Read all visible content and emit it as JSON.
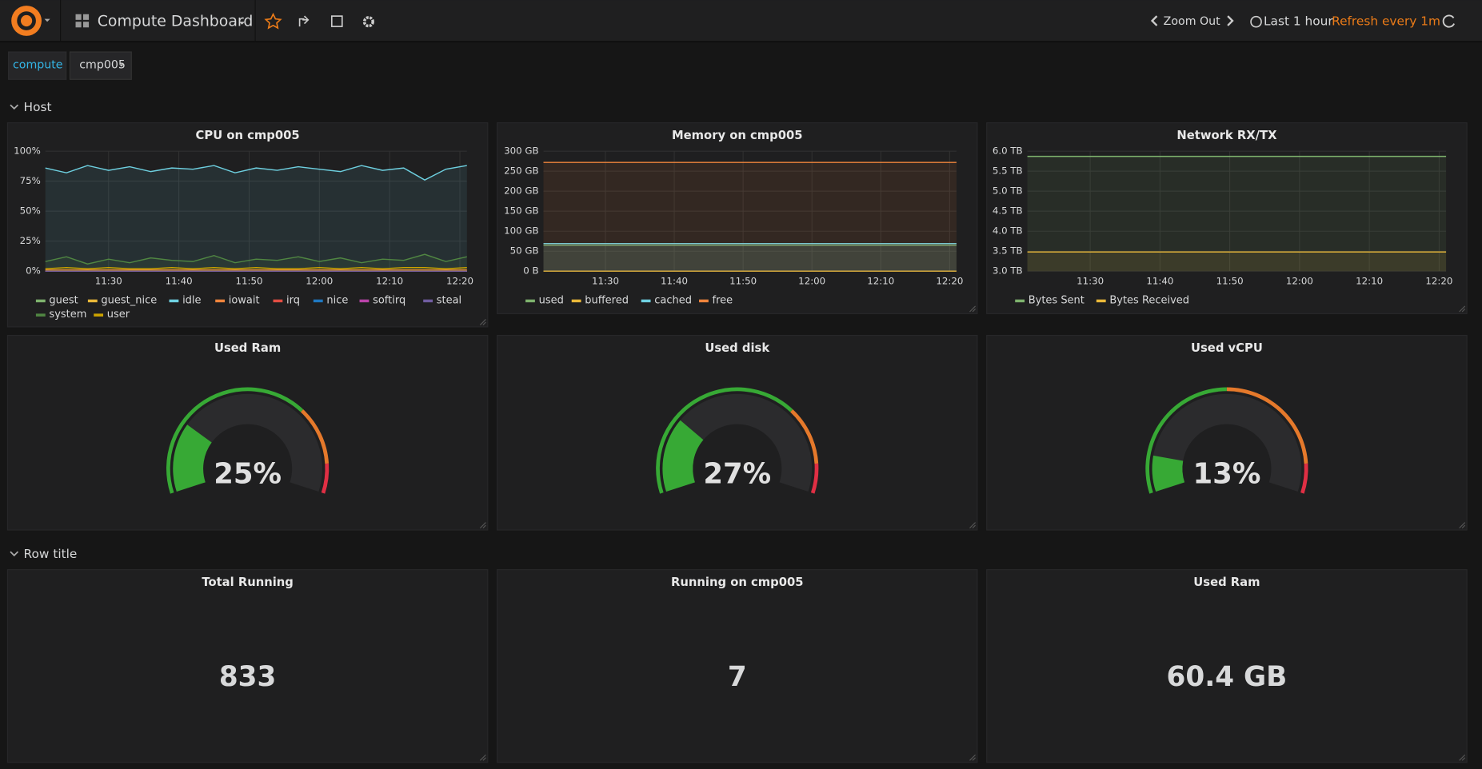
{
  "topbar": {
    "title": "Compute Dashboard",
    "zoom": "Zoom Out",
    "time_range": "Last 1 hour",
    "refresh": "Refresh every 1m"
  },
  "variables": [
    "compute",
    "cmp005"
  ],
  "rows": [
    "Host",
    "Row title"
  ],
  "cpu": {
    "type": "line",
    "title": "CPU on cmp005",
    "xlim": [
      "11:21",
      "12:21"
    ],
    "x": [
      "11:21",
      "11:24",
      "11:27",
      "11:30",
      "11:33",
      "11:36",
      "11:39",
      "11:42",
      "11:45",
      "11:48",
      "11:51",
      "11:54",
      "11:57",
      "12:00",
      "12:03",
      "12:06",
      "12:09",
      "12:12",
      "12:15",
      "12:18",
      "12:21"
    ],
    "xticks": [
      "11:30",
      "11:40",
      "11:50",
      "12:00",
      "12:10",
      "12:20"
    ],
    "ylim": [
      0,
      100
    ],
    "yticks": [
      {
        "value": 0,
        "label": "0%"
      },
      {
        "value": 25,
        "label": "25%"
      },
      {
        "value": 50,
        "label": "50%"
      },
      {
        "value": 75,
        "label": "75%"
      },
      {
        "value": 100,
        "label": "100%"
      }
    ],
    "series": [
      {
        "name": "guest",
        "color": "#7eb26d",
        "values": [
          0,
          0,
          0,
          0,
          0,
          0,
          0,
          0,
          0,
          0,
          0,
          0,
          0,
          0,
          0,
          0,
          0,
          0,
          0,
          0,
          0
        ]
      },
      {
        "name": "guest_nice",
        "color": "#eab839",
        "values": [
          0,
          0,
          0,
          0,
          0,
          0,
          0,
          0,
          0,
          0,
          0,
          0,
          0,
          0,
          0,
          0,
          0,
          0,
          0,
          0,
          0
        ]
      },
      {
        "name": "idle",
        "color": "#6ed0e0",
        "values": [
          86,
          82,
          88,
          84,
          87,
          83,
          86,
          85,
          88,
          82,
          86,
          84,
          87,
          85,
          83,
          88,
          84,
          86,
          76,
          85,
          88
        ]
      },
      {
        "name": "iowait",
        "color": "#ef843c",
        "values": [
          1,
          1,
          1,
          1,
          1,
          1,
          1,
          1,
          1,
          1,
          1,
          1,
          1,
          1,
          1,
          1,
          1,
          1,
          1,
          1,
          1
        ]
      },
      {
        "name": "irq",
        "color": "#e24d42",
        "values": [
          0,
          0,
          0,
          0,
          0,
          0,
          0,
          0,
          0,
          0,
          0,
          0,
          0,
          0,
          0,
          0,
          0,
          0,
          0,
          0,
          0
        ]
      },
      {
        "name": "nice",
        "color": "#1f78c1",
        "values": [
          0,
          0,
          0,
          0,
          0,
          0,
          0,
          0,
          0,
          0,
          0,
          0,
          0,
          0,
          0,
          0,
          0,
          0,
          0,
          0,
          0
        ]
      },
      {
        "name": "softirq",
        "color": "#ba43a9",
        "values": [
          0,
          0,
          0,
          0,
          0,
          0,
          0,
          0,
          0,
          0,
          0,
          0,
          0,
          0,
          0,
          0,
          0,
          0,
          0,
          0,
          0
        ]
      },
      {
        "name": "steal",
        "color": "#705da0",
        "values": [
          0,
          0,
          0,
          0,
          0,
          0,
          0,
          0,
          0,
          0,
          0,
          0,
          0,
          0,
          0,
          0,
          0,
          0,
          0,
          0,
          0
        ]
      },
      {
        "name": "system",
        "color": "#508642",
        "values": [
          8,
          12,
          6,
          10,
          7,
          11,
          9,
          8,
          13,
          7,
          10,
          9,
          12,
          8,
          11,
          7,
          10,
          9,
          14,
          8,
          12
        ]
      },
      {
        "name": "user",
        "color": "#cca300",
        "values": [
          2,
          3,
          2,
          3,
          2,
          2,
          3,
          2,
          3,
          2,
          3,
          2,
          2,
          3,
          2,
          3,
          2,
          3,
          3,
          2,
          3
        ]
      }
    ]
  },
  "memory": {
    "type": "line",
    "title": "Memory on cmp005",
    "xlim": [
      "11:21",
      "12:21"
    ],
    "x": [
      "11:21",
      "11:36",
      "11:51",
      "12:06",
      "12:21"
    ],
    "xticks": [
      "11:30",
      "11:40",
      "11:50",
      "12:00",
      "12:10",
      "12:20"
    ],
    "ylim": [
      0,
      300
    ],
    "yticks": [
      {
        "value": 0,
        "label": "0 B"
      },
      {
        "value": 50,
        "label": "50 GB"
      },
      {
        "value": 100,
        "label": "100 GB"
      },
      {
        "value": 150,
        "label": "150 GB"
      },
      {
        "value": 200,
        "label": "200 GB"
      },
      {
        "value": 250,
        "label": "250 GB"
      },
      {
        "value": 300,
        "label": "300 GB"
      }
    ],
    "series": [
      {
        "name": "used",
        "color": "#7eb26d",
        "values": [
          65,
          65,
          65,
          65,
          65
        ]
      },
      {
        "name": "buffered",
        "color": "#eab839",
        "values": [
          0,
          0,
          0,
          0,
          0
        ]
      },
      {
        "name": "cached",
        "color": "#6ed0e0",
        "values": [
          69,
          69,
          69,
          69,
          69
        ]
      },
      {
        "name": "free",
        "color": "#ef843c",
        "values": [
          272,
          272,
          272,
          272,
          272
        ]
      }
    ]
  },
  "network": {
    "type": "line",
    "title": "Network RX/TX",
    "xlim": [
      "11:21",
      "12:21"
    ],
    "x": [
      "11:21",
      "11:36",
      "11:51",
      "12:06",
      "12:21"
    ],
    "xticks": [
      "11:30",
      "11:40",
      "11:50",
      "12:00",
      "12:10",
      "12:20"
    ],
    "ylim": [
      3,
      6
    ],
    "yticks": [
      {
        "value": 3,
        "label": "3.0 TB"
      },
      {
        "value": 3.5,
        "label": "3.5 TB"
      },
      {
        "value": 4,
        "label": "4.0 TB"
      },
      {
        "value": 4.5,
        "label": "4.5 TB"
      },
      {
        "value": 5,
        "label": "5.0 TB"
      },
      {
        "value": 5.5,
        "label": "5.5 TB"
      },
      {
        "value": 6,
        "label": "6.0 TB"
      }
    ],
    "series": [
      {
        "name": "Bytes Sent",
        "color": "#7eb26d",
        "values": [
          5.87,
          5.87,
          5.87,
          5.87,
          5.87
        ]
      },
      {
        "name": "Bytes Received",
        "color": "#eab839",
        "values": [
          3.48,
          3.48,
          3.48,
          3.48,
          3.48
        ]
      }
    ]
  },
  "gauges": [
    {
      "type": "gauge",
      "title": "Used Ram",
      "value": 25,
      "value_label": "25%",
      "min": 0,
      "max": 100,
      "thresholds": [
        70,
        90
      ],
      "colors": [
        "#37a935",
        "#e5792b",
        "#e02f44"
      ]
    },
    {
      "type": "gauge",
      "title": "Used disk",
      "value": 27,
      "value_label": "27%",
      "min": 0,
      "max": 100,
      "thresholds": [
        70,
        90
      ],
      "colors": [
        "#37a935",
        "#e5792b",
        "#e02f44"
      ]
    },
    {
      "type": "gauge",
      "title": "Used vCPU",
      "value": 13,
      "value_label": "13%",
      "min": 0,
      "max": 100,
      "thresholds": [
        50,
        90
      ],
      "colors": [
        "#37a935",
        "#e5792b",
        "#e02f44"
      ]
    }
  ],
  "stats": [
    {
      "title": "Total Running",
      "value": 833
    },
    {
      "title": "Running on cmp005",
      "value": 7
    },
    {
      "title": "Used Ram",
      "value": 60.4,
      "value_label": "60.4 GB"
    }
  ]
}
